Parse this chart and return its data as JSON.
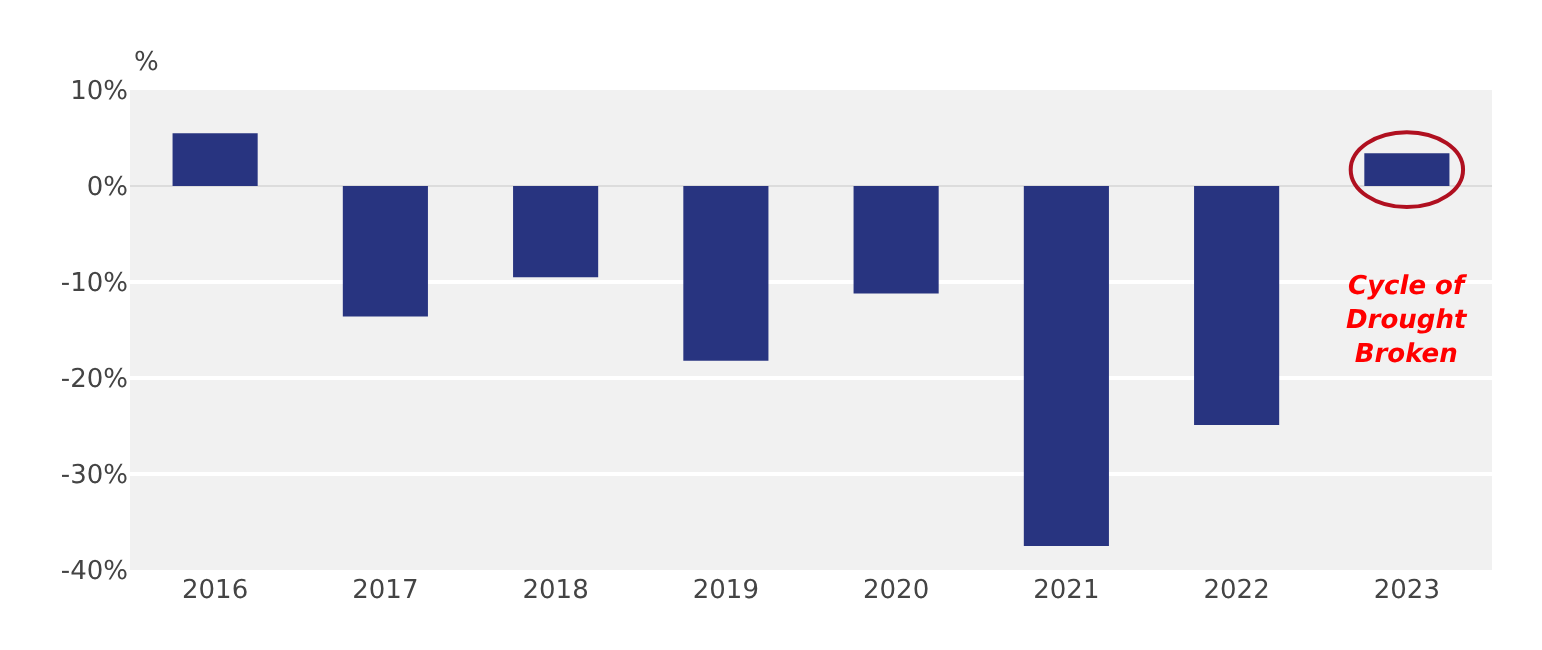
{
  "chart_data": {
    "type": "bar",
    "ylabel": "%",
    "categories": [
      "2016",
      "2017",
      "2018",
      "2019",
      "2020",
      "2021",
      "2022",
      "2023"
    ],
    "values": [
      5.5,
      -13.6,
      -9.5,
      -18.2,
      -11.2,
      -37.5,
      -24.9,
      3.4
    ],
    "color": "#283480",
    "ylim": [
      -40,
      10
    ],
    "yticks": [
      {
        "value": -40,
        "label": "-40%"
      },
      {
        "value": -30,
        "label": "-30%"
      },
      {
        "value": -20,
        "label": "-20%"
      },
      {
        "value": -10,
        "label": "-10%"
      },
      {
        "value": 0,
        "label": "0%"
      },
      {
        "value": 10,
        "label": "10%"
      }
    ],
    "grid": "y",
    "annotations": [
      "Cycle of Drought Broken"
    ]
  }
}
